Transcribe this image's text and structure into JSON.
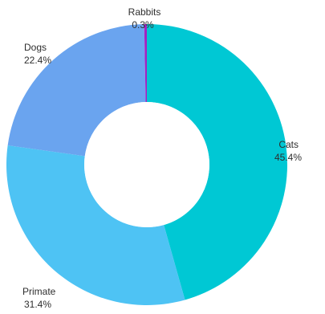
{
  "chart_data": {
    "type": "pie",
    "variant": "donut",
    "slices": [
      {
        "name": "Cats",
        "value": 45.4,
        "label": "45.4%",
        "color": "#00c8d4"
      },
      {
        "name": "Primate",
        "value": 31.4,
        "label": "31.4%",
        "color": "#4ec3f4"
      },
      {
        "name": "Dogs",
        "value": 22.4,
        "label": "22.4%",
        "color": "#6aa4ef"
      },
      {
        "name": "Rabbits",
        "value": 0.3,
        "label": "0.3%",
        "color": "#a323c2"
      }
    ],
    "start": "12 o'clock",
    "direction": "clockwise",
    "legend": "none"
  }
}
